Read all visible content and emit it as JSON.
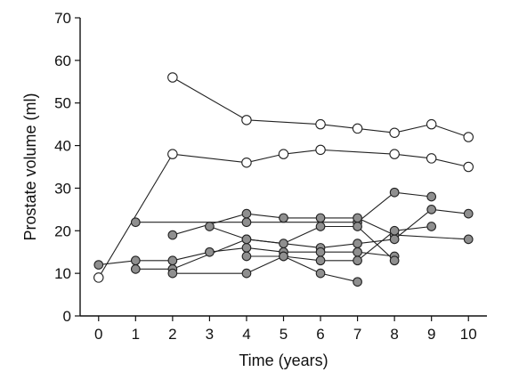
{
  "chart_data": {
    "type": "scatter",
    "title": "",
    "xlabel": "Time (years)",
    "ylabel": "Prostate volume (ml)",
    "xlim": [
      -0.5,
      10.5
    ],
    "ylim": [
      0,
      70
    ],
    "x_ticks": [
      0,
      1,
      2,
      3,
      4,
      5,
      6,
      7,
      8,
      9,
      10
    ],
    "y_ticks": [
      0,
      10,
      20,
      30,
      40,
      50,
      60,
      70
    ],
    "grid": false,
    "legend": "none",
    "colors": {
      "axis": "#111111",
      "line": "#222222",
      "open_marker_fill": "#ffffff",
      "filled_marker_fill": "#8f8f8f",
      "marker_stroke": "#222222"
    },
    "series": [
      {
        "marker": "open",
        "points": [
          {
            "x": 2,
            "y": 56
          },
          {
            "x": 4,
            "y": 46
          },
          {
            "x": 6,
            "y": 45
          },
          {
            "x": 7,
            "y": 44
          },
          {
            "x": 8,
            "y": 43
          },
          {
            "x": 9,
            "y": 45
          },
          {
            "x": 10,
            "y": 42
          }
        ]
      },
      {
        "marker": "open",
        "points": [
          {
            "x": 0,
            "y": 9
          },
          {
            "x": 2,
            "y": 38
          },
          {
            "x": 4,
            "y": 36
          },
          {
            "x": 5,
            "y": 38
          },
          {
            "x": 6,
            "y": 39
          },
          {
            "x": 8,
            "y": 38
          },
          {
            "x": 9,
            "y": 37
          },
          {
            "x": 10,
            "y": 35
          }
        ]
      },
      {
        "marker": "filled",
        "points": [
          {
            "x": 1,
            "y": 22
          },
          {
            "x": 4,
            "y": 22
          },
          {
            "x": 7,
            "y": 22
          },
          {
            "x": 8,
            "y": 29
          },
          {
            "x": 9,
            "y": 28
          }
        ]
      },
      {
        "marker": "filled",
        "points": [
          {
            "x": 2,
            "y": 19
          },
          {
            "x": 4,
            "y": 24
          },
          {
            "x": 5,
            "y": 23
          },
          {
            "x": 6,
            "y": 23
          },
          {
            "x": 7,
            "y": 23
          },
          {
            "x": 8,
            "y": 19
          },
          {
            "x": 10,
            "y": 18
          }
        ]
      },
      {
        "marker": "filled",
        "points": [
          {
            "x": 3,
            "y": 21
          },
          {
            "x": 4,
            "y": 18
          },
          {
            "x": 6,
            "y": 16
          },
          {
            "x": 7,
            "y": 17
          },
          {
            "x": 8,
            "y": 18
          },
          {
            "x": 9,
            "y": 25
          },
          {
            "x": 10,
            "y": 24
          }
        ]
      },
      {
        "marker": "filled",
        "points": [
          {
            "x": 0,
            "y": 12
          },
          {
            "x": 1,
            "y": 13
          },
          {
            "x": 2,
            "y": 13
          },
          {
            "x": 3,
            "y": 15
          },
          {
            "x": 4,
            "y": 16
          },
          {
            "x": 5,
            "y": 15
          },
          {
            "x": 6,
            "y": 15
          },
          {
            "x": 7,
            "y": 15
          },
          {
            "x": 8,
            "y": 14
          }
        ]
      },
      {
        "marker": "filled",
        "points": [
          {
            "x": 1,
            "y": 11
          },
          {
            "x": 2,
            "y": 11
          },
          {
            "x": 4,
            "y": 18
          },
          {
            "x": 5,
            "y": 17
          },
          {
            "x": 6,
            "y": 21
          },
          {
            "x": 7,
            "y": 21
          },
          {
            "x": 8,
            "y": 13
          }
        ]
      },
      {
        "marker": "filled",
        "points": [
          {
            "x": 2,
            "y": 10
          },
          {
            "x": 4,
            "y": 10
          },
          {
            "x": 5,
            "y": 14
          },
          {
            "x": 6,
            "y": 13
          },
          {
            "x": 7,
            "y": 13
          },
          {
            "x": 8,
            "y": 20
          },
          {
            "x": 9,
            "y": 21
          }
        ]
      },
      {
        "marker": "filled",
        "points": [
          {
            "x": 4,
            "y": 14
          },
          {
            "x": 5,
            "y": 14
          },
          {
            "x": 6,
            "y": 10
          },
          {
            "x": 7,
            "y": 8
          }
        ]
      }
    ]
  }
}
